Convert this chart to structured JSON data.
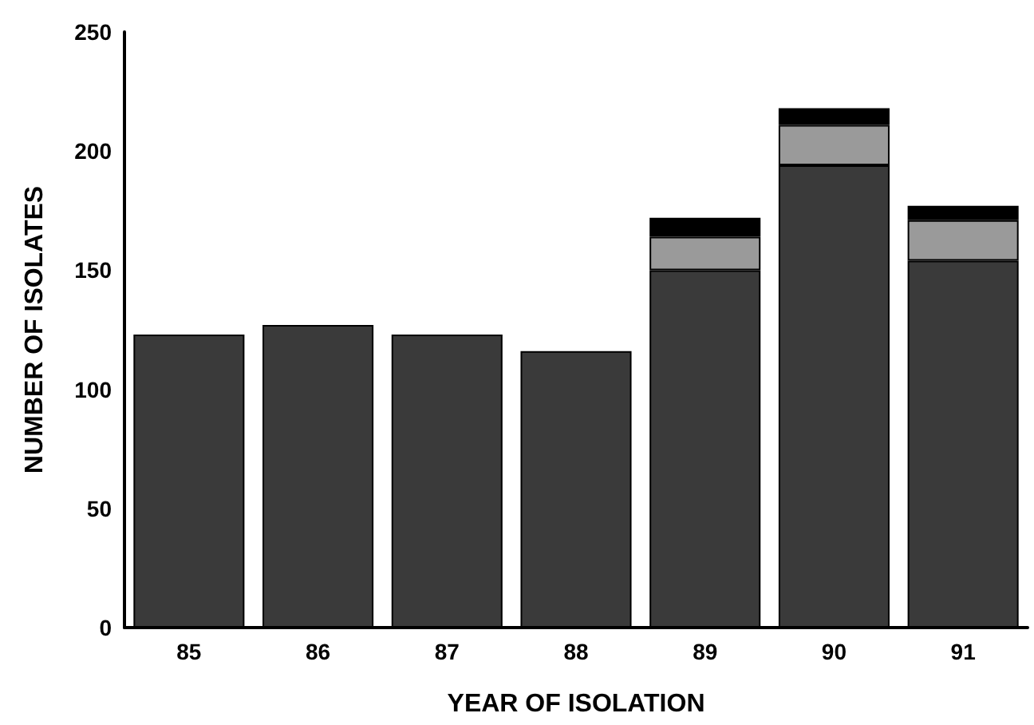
{
  "chart_data": {
    "type": "bar",
    "stacked": true,
    "xlabel": "YEAR OF ISOLATION",
    "ylabel": "NUMBER OF ISOLATES",
    "categories": [
      "85",
      "86",
      "87",
      "88",
      "89",
      "90",
      "91"
    ],
    "series": [
      {
        "color": "#3a3a3a",
        "values": [
          123,
          127,
          123,
          116,
          150,
          194,
          154
        ]
      },
      {
        "color": "#9a9a9a",
        "values": [
          null,
          null,
          null,
          null,
          14,
          17,
          17
        ]
      },
      {
        "color": "#000000",
        "values": [
          null,
          null,
          null,
          null,
          8,
          7,
          6
        ]
      }
    ],
    "ylim": [
      0,
      250
    ],
    "yticks": [
      0,
      50,
      100,
      150,
      200,
      250
    ],
    "grid": false
  }
}
